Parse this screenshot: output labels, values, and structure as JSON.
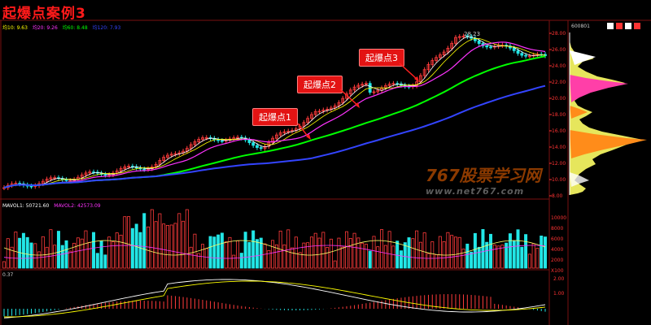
{
  "title": "起爆点案例3",
  "ma": [
    {
      "label": "均10: 9.63",
      "color": "#ffff00"
    },
    {
      "label": "均20: 9.26",
      "color": "#ff33ff"
    },
    {
      "label": "均60: 8.48",
      "color": "#00ff00"
    },
    {
      "label": "均120: 7.93",
      "color": "#3344ff"
    }
  ],
  "vol_ma": [
    {
      "label": "MAVOL1: 50721.60",
      "color": "#ffffff"
    },
    {
      "label": "MAVOL2: 42573.09",
      "color": "#ff33ff"
    }
  ],
  "macd_label": "0.37",
  "stock_code": "600801",
  "peak_label": "28.23",
  "price_ticks": [
    "28.00",
    "26.00",
    "24.00",
    "22.00",
    "20.00",
    "18.00",
    "16.00",
    "14.00",
    "12.00",
    "10.00",
    "8.00"
  ],
  "vol_ticks": [
    "10000",
    "8000",
    "6000",
    "4000",
    "2000",
    "X100"
  ],
  "macd_ticks": [
    "2.00",
    "1.00"
  ],
  "callouts": [
    "起爆点1",
    "起爆点2",
    "起爆点3"
  ],
  "watermark": {
    "brand": "767股票学习网",
    "url": "www.net767.com"
  },
  "colors": {
    "up": "#ff3b3b",
    "down": "#22e6e6",
    "grid": "#7a1010",
    "axis": "#ff3333"
  }
}
